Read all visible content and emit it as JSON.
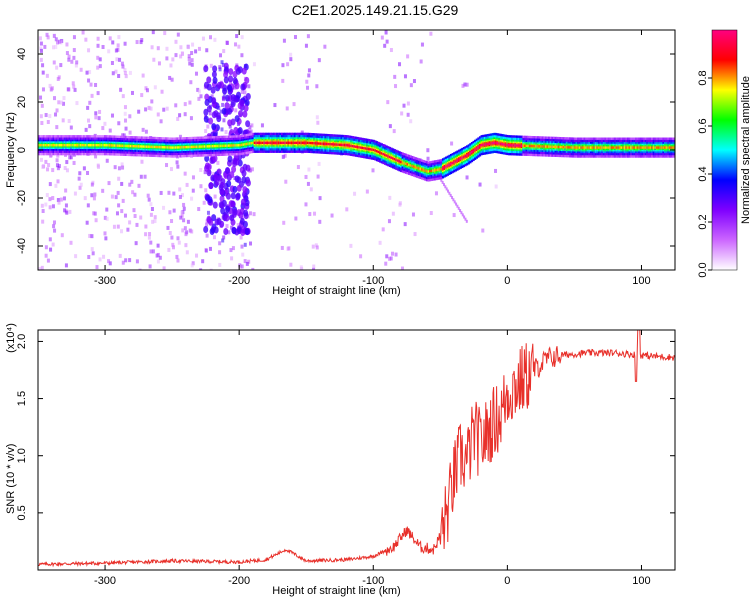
{
  "title": "C2E1.2025.149.21.15.G29",
  "chart_data": [
    {
      "type": "heatmap",
      "xlabel": "Height of straight line (km)",
      "ylabel": "Frequency (Hz)",
      "xlim": [
        -350,
        125
      ],
      "ylim": [
        -50,
        50
      ],
      "xticks": [
        -300,
        -200,
        -100,
        0,
        100
      ],
      "yticks": [
        -40,
        -20,
        0,
        20,
        40
      ],
      "colorbar": {
        "label": "Normalized spectral amplitude",
        "range": [
          0.0,
          1.0
        ],
        "ticks": [
          0.0,
          0.2,
          0.4,
          0.6,
          0.8
        ],
        "tick_labels": [
          "0.0",
          "0.2",
          "0.4",
          "0.6",
          "0.8"
        ],
        "colormap": [
          "#ffffff",
          "#cc66ff",
          "#7f00ff",
          "#0000ff",
          "#00ffff",
          "#00ff00",
          "#ffff00",
          "#ff0000",
          "#ff0080"
        ]
      },
      "dominant_ridge": {
        "x": [
          -350,
          -300,
          -250,
          -200,
          -190,
          -150,
          -120,
          -100,
          -80,
          -60,
          -50,
          -40,
          -30,
          -20,
          -10,
          0,
          50,
          125
        ],
        "y": [
          2,
          2,
          1,
          2,
          3,
          3,
          2,
          0,
          -5,
          -9,
          -8,
          -5,
          -2,
          2,
          3,
          2,
          1,
          1
        ]
      }
    },
    {
      "type": "line",
      "xlabel": "Height of straight line (km)",
      "ylabel": "SNR (10 * v/v)",
      "scale_label": "(x10⁴)",
      "xlim": [
        -350,
        125
      ],
      "ylim": [
        0,
        2.1
      ],
      "xticks": [
        -300,
        -200,
        -100,
        0,
        100
      ],
      "yticks": [
        0.5,
        1.0,
        1.5,
        2.0
      ],
      "ytick_labels": [
        "0.5",
        "1.0",
        "1.5",
        "2.0"
      ],
      "series": [
        {
          "color": "#e8302a",
          "x": [
            -350,
            -300,
            -250,
            -200,
            -180,
            -165,
            -150,
            -120,
            -100,
            -85,
            -75,
            -65,
            -55,
            -50,
            -45,
            -40,
            -35,
            -30,
            -25,
            -20,
            -15,
            -10,
            -5,
            0,
            10,
            20,
            30,
            40,
            60,
            80,
            100,
            110,
            125
          ],
          "values": [
            0.05,
            0.06,
            0.08,
            0.07,
            0.09,
            0.18,
            0.08,
            0.09,
            0.12,
            0.2,
            0.35,
            0.2,
            0.18,
            0.3,
            0.5,
            0.8,
            1.0,
            0.95,
            1.2,
            1.1,
            1.2,
            1.3,
            1.35,
            1.55,
            1.65,
            1.75,
            1.85,
            1.88,
            1.9,
            1.9,
            1.88,
            1.87,
            1.86
          ]
        }
      ]
    }
  ]
}
